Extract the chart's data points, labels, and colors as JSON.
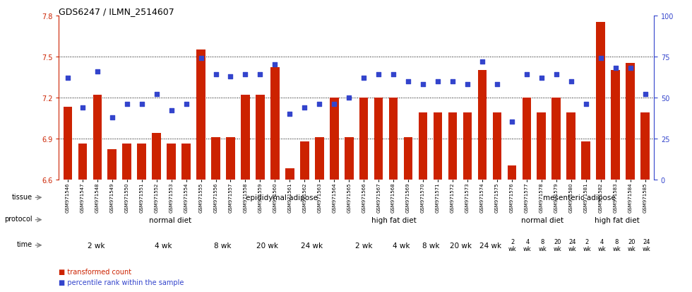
{
  "title": "GDS6247 / ILMN_2514607",
  "samples": [
    "GSM971546",
    "GSM971547",
    "GSM971548",
    "GSM971549",
    "GSM971550",
    "GSM971551",
    "GSM971552",
    "GSM971553",
    "GSM971554",
    "GSM971555",
    "GSM971556",
    "GSM971557",
    "GSM971558",
    "GSM971559",
    "GSM971560",
    "GSM971561",
    "GSM971562",
    "GSM971563",
    "GSM971564",
    "GSM971565",
    "GSM971566",
    "GSM971567",
    "GSM971568",
    "GSM971569",
    "GSM971570",
    "GSM971571",
    "GSM971572",
    "GSM971573",
    "GSM971574",
    "GSM971575",
    "GSM971576",
    "GSM971577",
    "GSM971578",
    "GSM971579",
    "GSM971580",
    "GSM971581",
    "GSM971582",
    "GSM971583",
    "GSM971584",
    "GSM971585"
  ],
  "bar_values": [
    7.13,
    6.86,
    7.22,
    6.82,
    6.86,
    6.86,
    6.94,
    6.86,
    6.86,
    7.55,
    6.91,
    6.91,
    7.22,
    7.22,
    7.42,
    6.68,
    6.88,
    6.91,
    7.2,
    6.91,
    7.2,
    7.2,
    7.2,
    6.91,
    7.09,
    7.09,
    7.09,
    7.09,
    7.4,
    7.09,
    6.7,
    7.2,
    7.09,
    7.2,
    7.09,
    6.88,
    7.75,
    7.4,
    7.45,
    7.09
  ],
  "dot_values": [
    62,
    44,
    66,
    38,
    46,
    46,
    52,
    42,
    46,
    74,
    64,
    63,
    64,
    64,
    70,
    40,
    44,
    46,
    46,
    50,
    62,
    64,
    64,
    60,
    58,
    60,
    60,
    58,
    72,
    58,
    35,
    64,
    62,
    64,
    60,
    46,
    74,
    68,
    68,
    52
  ],
  "ylim_left": [
    6.6,
    7.8
  ],
  "ylim_right": [
    0,
    100
  ],
  "yticks_left": [
    6.6,
    6.9,
    7.2,
    7.5,
    7.8
  ],
  "yticks_right": [
    0,
    25,
    50,
    75,
    100
  ],
  "bar_color": "#CC2200",
  "dot_color": "#3344CC",
  "bar_baseline": 6.6,
  "tissue_groups": [
    {
      "label": "epididymal adipose",
      "start": 0,
      "end": 30,
      "color": "#AADDAA"
    },
    {
      "label": "mesenteric adipose",
      "start": 30,
      "end": 40,
      "color": "#55CC55"
    }
  ],
  "protocol_groups": [
    {
      "label": "normal diet",
      "start": 0,
      "end": 15,
      "color": "#AAAADD"
    },
    {
      "label": "high fat diet",
      "start": 15,
      "end": 30,
      "color": "#8888CC"
    },
    {
      "label": "normal diet",
      "start": 30,
      "end": 35,
      "color": "#AAAADD"
    },
    {
      "label": "high fat diet",
      "start": 35,
      "end": 40,
      "color": "#8888CC"
    }
  ],
  "time_groups": [
    {
      "label": "2 wk",
      "start": 0,
      "end": 5,
      "color": "#FFCCCC",
      "small": false
    },
    {
      "label": "4 wk",
      "start": 5,
      "end": 9,
      "color": "#EEAAAA",
      "small": false
    },
    {
      "label": "8 wk",
      "start": 9,
      "end": 13,
      "color": "#DD9999",
      "small": false
    },
    {
      "label": "20 wk",
      "start": 13,
      "end": 15,
      "color": "#CC8888",
      "small": false
    },
    {
      "label": "24 wk",
      "start": 15,
      "end": 19,
      "color": "#BB7777",
      "small": false
    },
    {
      "label": "2 wk",
      "start": 19,
      "end": 22,
      "color": "#FFCCCC",
      "small": false
    },
    {
      "label": "4 wk",
      "start": 22,
      "end": 24,
      "color": "#EEAAAA",
      "small": false
    },
    {
      "label": "8 wk",
      "start": 24,
      "end": 26,
      "color": "#DD9999",
      "small": false
    },
    {
      "label": "20 wk",
      "start": 26,
      "end": 28,
      "color": "#CC8888",
      "small": false
    },
    {
      "label": "24 wk",
      "start": 28,
      "end": 30,
      "color": "#BB7777",
      "small": false
    },
    {
      "label": "2\nwk",
      "start": 30,
      "end": 31,
      "color": "#FFCCCC",
      "small": true
    },
    {
      "label": "4\nwk",
      "start": 31,
      "end": 32,
      "color": "#EEAAAA",
      "small": true
    },
    {
      "label": "8\nwk",
      "start": 32,
      "end": 33,
      "color": "#DD9999",
      "small": true
    },
    {
      "label": "20\nwk",
      "start": 33,
      "end": 34,
      "color": "#CC8888",
      "small": true
    },
    {
      "label": "24\nwk",
      "start": 34,
      "end": 35,
      "color": "#BB7777",
      "small": true
    },
    {
      "label": "2\nwk",
      "start": 35,
      "end": 36,
      "color": "#FFCCCC",
      "small": true
    },
    {
      "label": "4\nwk",
      "start": 36,
      "end": 37,
      "color": "#EEAAAA",
      "small": true
    },
    {
      "label": "8\nwk",
      "start": 37,
      "end": 38,
      "color": "#DD9999",
      "small": true
    },
    {
      "label": "20\nwk",
      "start": 38,
      "end": 39,
      "color": "#CC8888",
      "small": true
    },
    {
      "label": "24\nwk",
      "start": 39,
      "end": 40,
      "color": "#BB7777",
      "small": true
    }
  ]
}
